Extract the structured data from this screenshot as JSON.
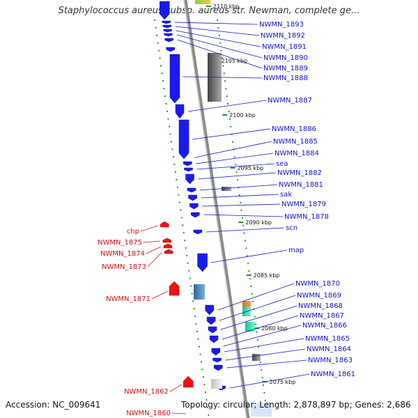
{
  "title": "Staphylococcus aureus subsp. aureus str. Newman, complete ge...",
  "footer": {
    "accession": "Accession: NC_009641",
    "topology": "Topology: circular; Length: 2,878,897 bp; Genes: 2,686"
  },
  "colors": {
    "forward_gene": "#1a1aee",
    "reverse_gene": "#ee1111",
    "backbone": "#8a8a8a",
    "gc_skew_dots": "#2a8a2a",
    "label_blue": "#1010c8",
    "label_red": "#cc1010"
  },
  "kbp_ticks": [
    "2110 kbp",
    "2105 kbp",
    "2100 kbp",
    "2095 kbp",
    "2090 kbp",
    "2085 kbp",
    "2080 kbp",
    "2075 kbp"
  ],
  "forward_labels": [
    "NWMN_1893",
    "NWMN_1892",
    "NWMN_1891",
    "NWMN_1890",
    "NWMN_1889",
    "NWMN_1888",
    "NWMN_1887",
    "NWMN_1886",
    "NWMN_1885",
    "NWMN_1884",
    "sea",
    "NWMN_1882",
    "NWMN_1881",
    "sak",
    "NWMN_1879",
    "NWMN_1878",
    "scn",
    "map",
    "NWMN_1870",
    "NWMN_1869",
    "NWMN_1868",
    "NWMN_1867",
    "NWMN_1866",
    "NWMN_1865",
    "NWMN_1864",
    "NWMN_1863",
    "NWMN_1861"
  ],
  "reverse_labels": [
    "chp",
    "NWMN_1875",
    "NWMN_1874",
    "NWMN_1873",
    "NWMN_1871",
    "NWMN_1862",
    "NWMN_1860"
  ]
}
